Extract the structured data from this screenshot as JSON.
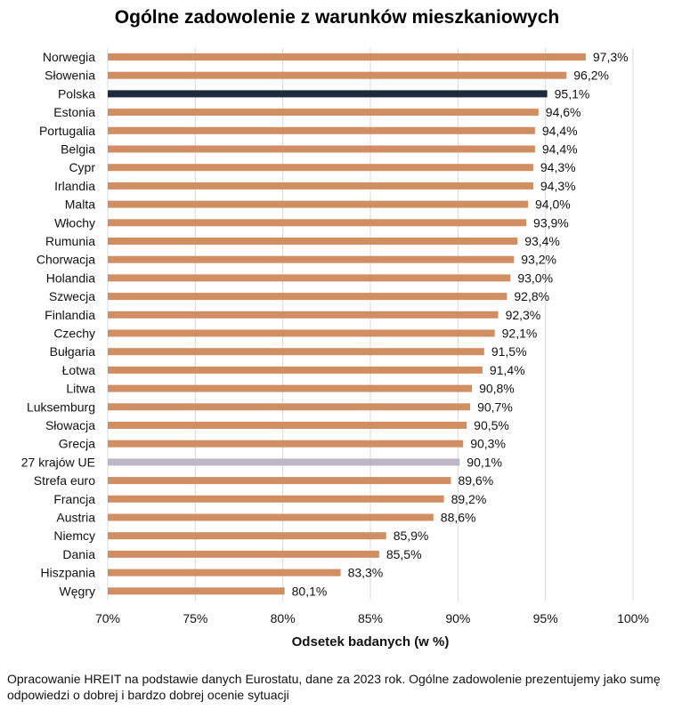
{
  "chart_data": {
    "type": "bar",
    "orientation": "horizontal",
    "title": "Ogólne zadowolenie z warunków mieszkaniowych",
    "xlabel": "Odsetek badanych (w %)",
    "ylabel": "",
    "xlim": [
      70,
      100
    ],
    "x_ticks": [
      70,
      75,
      80,
      85,
      90,
      95,
      100
    ],
    "x_tick_labels": [
      "70%",
      "75%",
      "80%",
      "85%",
      "90%",
      "95%",
      "100%"
    ],
    "grid": true,
    "legend": "none",
    "categories": [
      "Norwegia",
      "Słowenia",
      "Polska",
      "Estonia",
      "Portugalia",
      "Belgia",
      "Cypr",
      "Irlandia",
      "Malta",
      "Włochy",
      "Rumunia",
      "Chorwacja",
      "Holandia",
      "Szwecja",
      "Finlandia",
      "Czechy",
      "Bułgaria",
      "Łotwa",
      "Litwa",
      "Luksemburg",
      "Słowacja",
      "Grecja",
      "27 krajów UE",
      "Strefa euro",
      "Francja",
      "Austria",
      "Niemcy",
      "Dania",
      "Hiszpania",
      "Węgry"
    ],
    "values": [
      97.3,
      96.2,
      95.1,
      94.6,
      94.4,
      94.4,
      94.3,
      94.3,
      94.0,
      93.9,
      93.4,
      93.2,
      93.0,
      92.8,
      92.3,
      92.1,
      91.5,
      91.4,
      90.8,
      90.7,
      90.5,
      90.3,
      90.1,
      89.6,
      89.2,
      88.6,
      85.9,
      85.5,
      83.3,
      80.1
    ],
    "value_labels": [
      "97,3%",
      "96,2%",
      "95,1%",
      "94,6%",
      "94,4%",
      "94,4%",
      "94,3%",
      "94,3%",
      "94,0%",
      "93,9%",
      "93,4%",
      "93,2%",
      "93,0%",
      "92,8%",
      "92,3%",
      "92,1%",
      "91,5%",
      "91,4%",
      "90,8%",
      "90,7%",
      "90,5%",
      "90,3%",
      "90,1%",
      "89,6%",
      "89,2%",
      "88,6%",
      "85,9%",
      "85,5%",
      "83,3%",
      "80,1%"
    ],
    "colors": {
      "default": "#D08E62",
      "highlight": "#1F2A3C",
      "eu": "#BCB7C4",
      "grid": "#D9D9D9"
    },
    "highlighted": {
      "Polska": "highlight",
      "27 krajów UE": "eu"
    }
  },
  "footer": {
    "note": "Opracowanie HREIT na podstawie danych Eurostatu, dane za 2023 rok. Ogólne zadowolenie prezentujemy jako sumę odpowiedzi o dobrej i bardzo dobrej ocenie sytuacji"
  }
}
